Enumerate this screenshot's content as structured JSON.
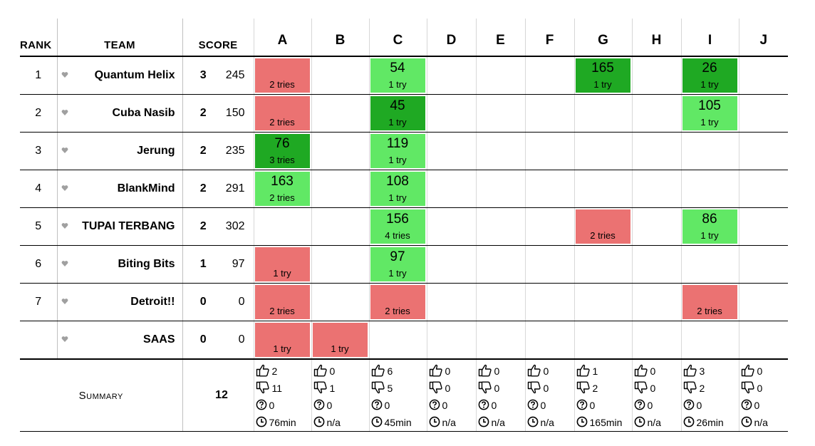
{
  "headers": {
    "rank": "RANK",
    "team": "TEAM",
    "score": "SCORE"
  },
  "problems": [
    "A",
    "B",
    "C",
    "D",
    "E",
    "F",
    "G",
    "H",
    "I",
    "J"
  ],
  "rows": [
    {
      "rank": "1",
      "name": "Quantum Helix",
      "solved": "3",
      "penalty": "245",
      "cells": [
        {
          "status": "wa",
          "time": "",
          "tries": "2 tries"
        },
        null,
        {
          "status": "ac",
          "time": "54",
          "tries": "1 try"
        },
        null,
        null,
        null,
        {
          "status": "first",
          "time": "165",
          "tries": "1 try"
        },
        null,
        {
          "status": "first",
          "time": "26",
          "tries": "1 try"
        },
        null
      ]
    },
    {
      "rank": "2",
      "name": "Cuba Nasib",
      "solved": "2",
      "penalty": "150",
      "cells": [
        {
          "status": "wa",
          "time": "",
          "tries": "2 tries"
        },
        null,
        {
          "status": "first",
          "time": "45",
          "tries": "1 try"
        },
        null,
        null,
        null,
        null,
        null,
        {
          "status": "ac",
          "time": "105",
          "tries": "1 try"
        },
        null
      ]
    },
    {
      "rank": "3",
      "name": "Jerung",
      "solved": "2",
      "penalty": "235",
      "cells": [
        {
          "status": "first",
          "time": "76",
          "tries": "3 tries"
        },
        null,
        {
          "status": "ac",
          "time": "119",
          "tries": "1 try"
        },
        null,
        null,
        null,
        null,
        null,
        null,
        null
      ]
    },
    {
      "rank": "4",
      "name": "BlankMind",
      "solved": "2",
      "penalty": "291",
      "cells": [
        {
          "status": "ac",
          "time": "163",
          "tries": "2 tries"
        },
        null,
        {
          "status": "ac",
          "time": "108",
          "tries": "1 try"
        },
        null,
        null,
        null,
        null,
        null,
        null,
        null
      ]
    },
    {
      "rank": "5",
      "name": "TUPAI TERBANG",
      "solved": "2",
      "penalty": "302",
      "cells": [
        null,
        null,
        {
          "status": "ac",
          "time": "156",
          "tries": "4 tries"
        },
        null,
        null,
        null,
        {
          "status": "wa",
          "time": "",
          "tries": "2 tries"
        },
        null,
        {
          "status": "ac",
          "time": "86",
          "tries": "1 try"
        },
        null
      ]
    },
    {
      "rank": "6",
      "name": "Biting Bits",
      "solved": "1",
      "penalty": "97",
      "cells": [
        {
          "status": "wa",
          "time": "",
          "tries": "1 try"
        },
        null,
        {
          "status": "ac",
          "time": "97",
          "tries": "1 try"
        },
        null,
        null,
        null,
        null,
        null,
        null,
        null
      ]
    },
    {
      "rank": "7",
      "name": "Detroit!!",
      "solved": "0",
      "penalty": "0",
      "cells": [
        {
          "status": "wa",
          "time": "",
          "tries": "2 tries"
        },
        null,
        {
          "status": "wa",
          "time": "",
          "tries": "2 tries"
        },
        null,
        null,
        null,
        null,
        null,
        {
          "status": "wa",
          "time": "",
          "tries": "2 tries"
        },
        null
      ]
    },
    {
      "rank": "",
      "name": "SAAS",
      "solved": "0",
      "penalty": "0",
      "cells": [
        {
          "status": "wa",
          "time": "",
          "tries": "1 try"
        },
        {
          "status": "wa",
          "time": "",
          "tries": "1 try"
        },
        null,
        null,
        null,
        null,
        null,
        null,
        null,
        null
      ]
    }
  ],
  "summary": {
    "label": "Summary",
    "total": "12",
    "stats": [
      {
        "accepted": "2",
        "rejected": "11",
        "pending": "0",
        "first": "76min"
      },
      {
        "accepted": "0",
        "rejected": "1",
        "pending": "0",
        "first": "n/a"
      },
      {
        "accepted": "6",
        "rejected": "5",
        "pending": "0",
        "first": "45min"
      },
      {
        "accepted": "0",
        "rejected": "0",
        "pending": "0",
        "first": "n/a"
      },
      {
        "accepted": "0",
        "rejected": "0",
        "pending": "0",
        "first": "n/a"
      },
      {
        "accepted": "0",
        "rejected": "0",
        "pending": "0",
        "first": "n/a"
      },
      {
        "accepted": "1",
        "rejected": "2",
        "pending": "0",
        "first": "165min"
      },
      {
        "accepted": "0",
        "rejected": "0",
        "pending": "0",
        "first": "n/a"
      },
      {
        "accepted": "3",
        "rejected": "2",
        "pending": "0",
        "first": "26min"
      },
      {
        "accepted": "0",
        "rejected": "0",
        "pending": "0",
        "first": "n/a"
      }
    ]
  },
  "icons": {
    "favorite": "heart-icon",
    "accepted": "thumbs-up-icon",
    "rejected": "thumbs-down-icon",
    "pending": "question-icon",
    "first": "clock-icon"
  },
  "colors": {
    "accepted": "#61e865",
    "first_to_solve": "#1fa923",
    "rejected": "#eb7272",
    "heart": "#a0a0a0"
  }
}
